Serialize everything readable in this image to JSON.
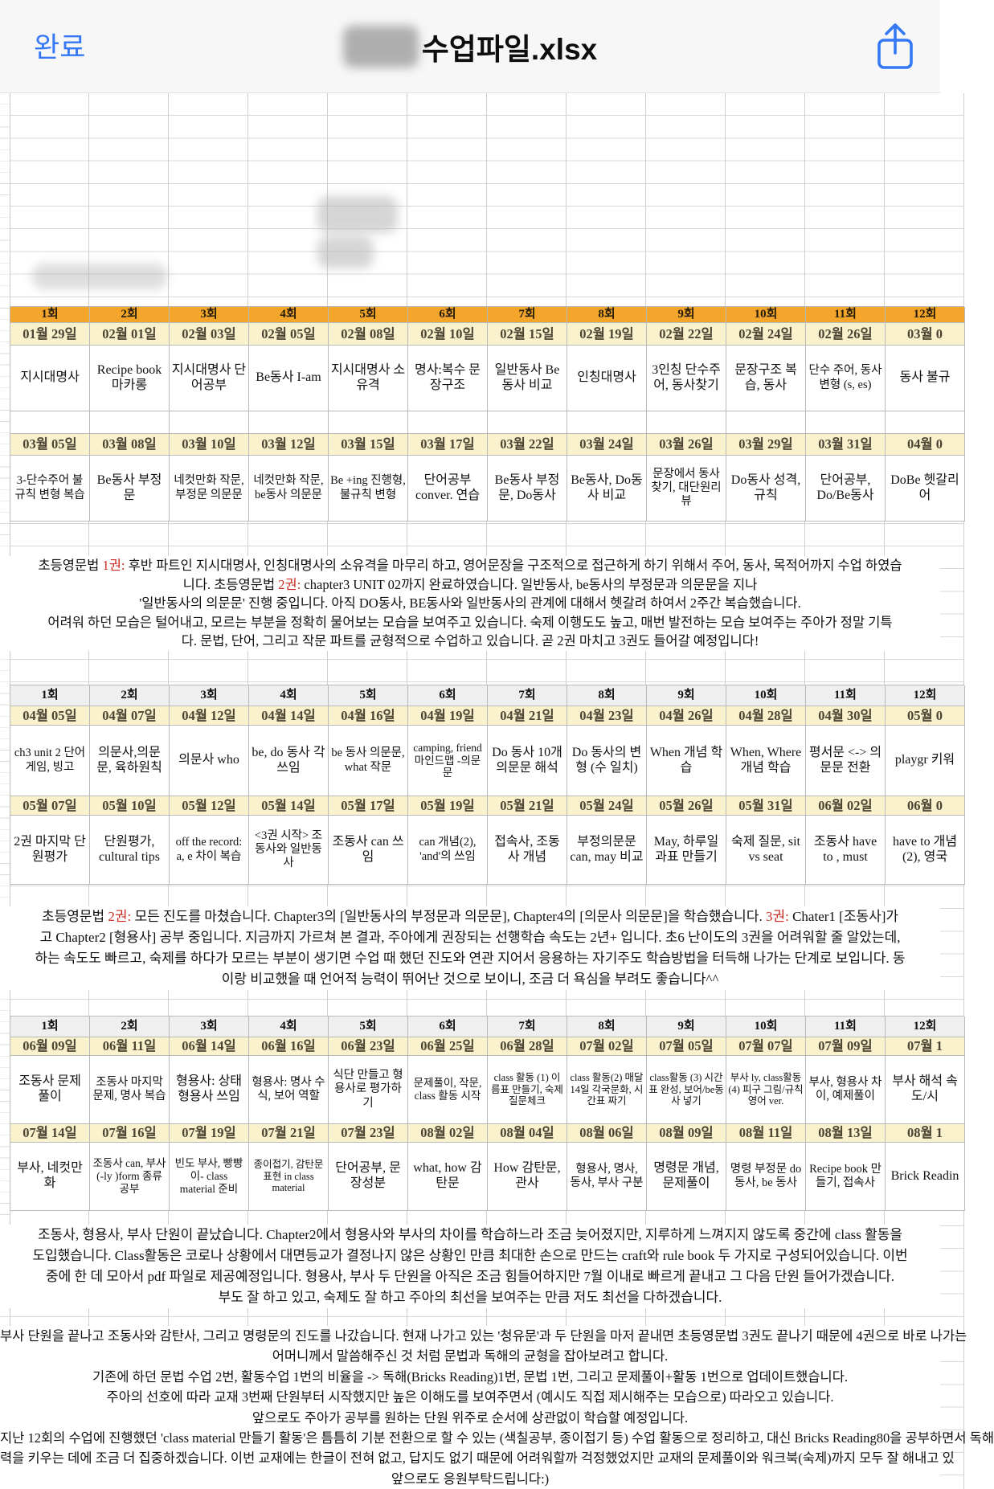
{
  "titlebar": {
    "done_label": "완료",
    "title": "수업파일.xlsx",
    "accent_color": "#3478F6"
  },
  "sheet": {
    "header_orange": "#F3A62B",
    "header_gray": "#EFEFEF",
    "date_bg": "#FAF2CD",
    "red_color": "#CB2B20",
    "sessions": [
      "1회",
      "2회",
      "3회",
      "4회",
      "5회",
      "6회",
      "7회",
      "8회",
      "9회",
      "10회",
      "11회",
      "12회"
    ],
    "tables": [
      {
        "style": "orange",
        "rows": [
          {
            "dates": [
              "01월 29일",
              "02월 01일",
              "02월 03일",
              "02월 05일",
              "02월 08일",
              "02월 10일",
              "02월 15일",
              "02월 19일",
              "02월 22일",
              "02월 24일",
              "02월 26일",
              "03월 0"
            ],
            "lessons": [
              "지시대명사",
              "Recipe book 마카롱",
              "지시대명사 단어공부",
              "Be동사 I-am",
              "지시대명사 소유격",
              "명사:복수 문장구조",
              "일반동사 Be동사 비교",
              "인칭대명사",
              "3인칭 단수주어, 동사찾기",
              "문장구조 복습, 동사",
              "단수 주어, 동사 변형 (s, es)",
              "동사 불규"
            ]
          },
          {
            "dates": [
              "03월 05일",
              "03월 08일",
              "03월 10일",
              "03월 12일",
              "03월 15일",
              "03월 17일",
              "03월 22일",
              "03월 24일",
              "03월 26일",
              "03월 29일",
              "03월 31일",
              "04월 0"
            ],
            "lessons": [
              "3-단수주어 불규칙 변형 복습",
              "Be동사 부정문",
              "네컷만화 작문, 부정문 의문문",
              "네컷만화 작문, be동사 의문문",
              "Be +ing 진행형, 불규칙 변형",
              "단어공부 conver. 연습",
              "Be동사 부정문, Do동사",
              "Be동사, Do동사 비교",
              "문장에서 동사찾기, 대단원리뷰",
              "Do동사 성격, 규칙",
              "단어공부, Do/Be동사",
              "DoBe 헷갈리 어"
            ]
          }
        ]
      },
      {
        "style": "gray",
        "rows": [
          {
            "dates": [
              "04월 05일",
              "04월 07일",
              "04월 12일",
              "04월 14일",
              "04월 16일",
              "04월 19일",
              "04월 21일",
              "04월 23일",
              "04월 26일",
              "04월 28일",
              "04월 30일",
              "05월 0"
            ],
            "lessons": [
              "ch3 unit 2 단어 게임, 빙고",
              "의문사,의문문, 육하원칙",
              "의문사 who",
              "be, do 동사 각 쓰임",
              "be 동사 의문문, what 작문",
              "camping, friend 마인드맵 -의문문",
              "Do 동사 10개 의문문 해석",
              "Do 동사의 변형 (수 일치)",
              "When 개념 학습",
              "When, Where 개념 학습",
              "평서문 <-> 의문문 전환",
              "playgr 키워"
            ]
          },
          {
            "dates": [
              "05월 07일",
              "05월 10일",
              "05월 12일",
              "05월 14일",
              "05월 17일",
              "05월 19일",
              "05월 21일",
              "05월 24일",
              "05월 26일",
              "05월 31일",
              "06월 02일",
              "06월 0"
            ],
            "lessons": [
              "2권 마지막 단원평가",
              "단원평가, cultural tips",
              "off the record: a, e 차이 복습",
              "<3권 시작> 조동사와 일반동사",
              "조동사 can 쓰임",
              "can 개념(2), 'and'의 쓰임",
              "접속사, 조동사 개념",
              "부정의문문 can, may 비교",
              "May, 하루일과표 만들기",
              "숙제 질문, sit vs seat",
              "조동사 have to , must",
              "have to 개념(2), 영국"
            ]
          }
        ]
      },
      {
        "style": "gray",
        "rows": [
          {
            "dates": [
              "06월 09일",
              "06월 11일",
              "06월 14일",
              "06월 16일",
              "06월 23일",
              "06월 25일",
              "06월 28일",
              "07월 02일",
              "07월 05일",
              "07월 07일",
              "07월 09일",
              "07월 1"
            ],
            "lessons": [
              "조동사 문제 풀이",
              "조동사 마지막 문제, 명사 복습",
              "형용사: 상태 형용사 쓰임",
              "형용사: 명사 수식, 보어 역할",
              "식단 만들고 형용사로 평가하기",
              "문제풀이, 작문, class 활동 시작",
              "class 활동 (1) 이름표 만들기, 숙제 질문체크",
              "class 활동(2) 매달14일 각국문화, 시간표 짜기",
              "class활동 (3) 시간표 완성, 보어/be동사 넣기",
              "부사 ly, class활동 (4) 피구 그림/규칙 영어 ver.",
              "부사, 형용사 차이, 예제풀이",
              "부사 해석 속도/시"
            ]
          },
          {
            "dates": [
              "07월 14일",
              "07월 16일",
              "07월 19일",
              "07월 21일",
              "07월 23일",
              "08월 02일",
              "08월 04일",
              "08월 06일",
              "08월 09일",
              "08월 11일",
              "08월 13일",
              "08월 1"
            ],
            "lessons": [
              "부사, 네컷만화",
              "조동사 can, 부사 (-ly )form 종류 공부",
              "빈도 부사, 빵빵이- class material 준비",
              "종이접기, 감탄문 표현 in class material",
              "단어공부, 문장성분",
              "what, how 감탄문",
              "How 감탄문, 관사",
              "형용사, 명사, 동사, 부사 구분",
              "명령문 개념, 문제풀이",
              "명령 부정문 do 동사, be 동사",
              "Recipe book 만들기, 접속사",
              "Brick Readin"
            ]
          }
        ]
      }
    ],
    "paragraphs": [
      {
        "lines": [
          [
            {
              "t": "초등영문법 "
            },
            {
              "t": "1권:",
              "red": true
            },
            {
              "t": " 후반 파트인 지시대명사, 인칭대명사의 소유격을 마무리 하고, 영어문장을 구조적으로 접근하게 하기 위해서 주어, 동사, 목적어까지 수업 하였습"
            }
          ],
          [
            {
              "t": "니다. 초등영문법 "
            },
            {
              "t": "2권:",
              "red": true
            },
            {
              "t": " chapter3 UNIT 02까지 완료하였습니다. 일반동사, be동사의 부정문과 의문문을 지나"
            }
          ],
          [
            {
              "t": "'일반동사의 의문문' 진행 중입니다. 아직 DO동사, BE동사와 일반동사의 관계에 대해서 헷갈려 하여서 2주간 복습했습니다."
            }
          ],
          [
            {
              "t": "어려워 하던 모습은 털어내고, 모르는 부분을 정확히 물어보는 모습을 보여주고 있습니다. 숙제 이행도도 높고, 매번 발전하는 모습 보여주는 주아가 정말 기특"
            }
          ],
          [
            {
              "t": "다. 문법, 단어, 그리고 작문 파트를 균형적으로 수업하고 있습니다. 곧 2권 마치고 3권도 들어갈 예정입니다!"
            }
          ]
        ]
      },
      {
        "lines": [
          [
            {
              "t": "초등영문법 "
            },
            {
              "t": "2권:",
              "red": true
            },
            {
              "t": " 모든 진도를 마쳤습니다. Chapter3의 [일반동사의 부정문과 의문문], Chapter4의 [의문사 의문문]을 학습했습니다. "
            },
            {
              "t": "3권:",
              "red": true
            },
            {
              "t": " Chater1 [조동사]가"
            }
          ],
          [
            {
              "t": "고 Chapter2 [형용사] 공부 중입니다. 지금까지 가르쳐 본 결과, 주아에게 권장되는 선행학습 속도는 2년+ 입니다. 초6 난이도의 3권을 어려워할 줄 알았는데,"
            }
          ],
          [
            {
              "t": "하는 속도도 빠르고, 숙제를 하다가 모르는 부분이 생기면 수업 때 했던 진도와 연관 지어서 응용하는 자기주도 학습방법을 터득해 나가는 단계로 보입니다. 동"
            }
          ],
          [
            {
              "t": "이랑 비교했을 때 언어적 능력이 뛰어난 것으로 보이니, 조금 더 욕심을 부려도 좋습니다^^"
            }
          ]
        ]
      },
      {
        "lines": [
          [
            {
              "t": "조동사, 형용사, 부사 단원이 끝났습니다. Chapter2에서 형용사와 부사의 차이를 학습하느라 조금 늦어졌지만, 지루하게 느껴지지 않도록 중간에 class 활동을"
            }
          ],
          [
            {
              "t": "도입했습니다. Class활동은 코로나 상황에서 대면등교가 결정나지 않은 상황인 만큼 최대한 손으로 만드는 craft와 rule book 두 가지로 구성되어있습니다. 이번"
            }
          ],
          [
            {
              "t": "중에 한 데 모아서 pdf 파일로 제공예정입니다. 형용사, 부사 두 단원을 아직은 조금 힘들어하지만 7월 이내로 빠르게 끝내고 그 다음 단원 들어가겠습니다."
            }
          ],
          [
            {
              "t": "부도 잘 하고 있고, 숙제도 잘 하고 주아의 최선을 보여주는 만큼 저도 최선을 다하겠습니다."
            }
          ]
        ]
      },
      {
        "lines": [
          [
            {
              "t": "부사 단원을 끝나고 조동사와 감탄사, 그리고 명령문의 진도를 나갔습니다. 현재 나가고 있는 '청유문'과 두 단원을 마저 끝내면 초등영문법 3권도 끝나기 때문에 4권으로 바로 나가는"
            }
          ],
          [
            {
              "t": "어머니께서 말씀해주신 것 처럼 문법과 독해의 균형을 잡아보려고 합니다."
            }
          ],
          [
            {
              "t": "기존에 하던 문법 수업 2번, 활동수업 1번의 비율을 -> 독해(Bricks Reading)1번, 문법 1번, 그리고 문제풀이+활동 1번으로 업데이트했습니다."
            }
          ],
          [
            {
              "t": "주아의 선호에 따라 교재 3번째 단원부터 시작했지만 높은 이해도를 보여주면서 (예시도 직접 제시해주는 모습으로) 따라오고 있습니다."
            }
          ],
          [
            {
              "t": "앞으로도 주아가 공부를 원하는 단원 위주로 순서에 상관없이 학습할 예정입니다."
            }
          ],
          [
            {
              "t": "지난 12회의 수업에 진행했던 'class material 만들기 활동'은 틈틈히 기분 전환으로 할 수 있는 (색칠공부, 종이접기 등) 수업 활동으로 정리하고, 대신 Bricks Reading80을 공부하면서 독해"
            }
          ],
          [
            {
              "t": "력을 키우는 데에 조금 더 집중하겠습니다. 이번 교재에는 한글이 전혀 없고, 답지도 없기 때문에 어려워할까 걱정했었지만 교재의 문제풀이와 워크북(숙제)까지 모두 잘 해내고 있"
            }
          ],
          [
            {
              "t": "앞으로도 응원부탁드립니다:)"
            }
          ]
        ]
      }
    ]
  }
}
